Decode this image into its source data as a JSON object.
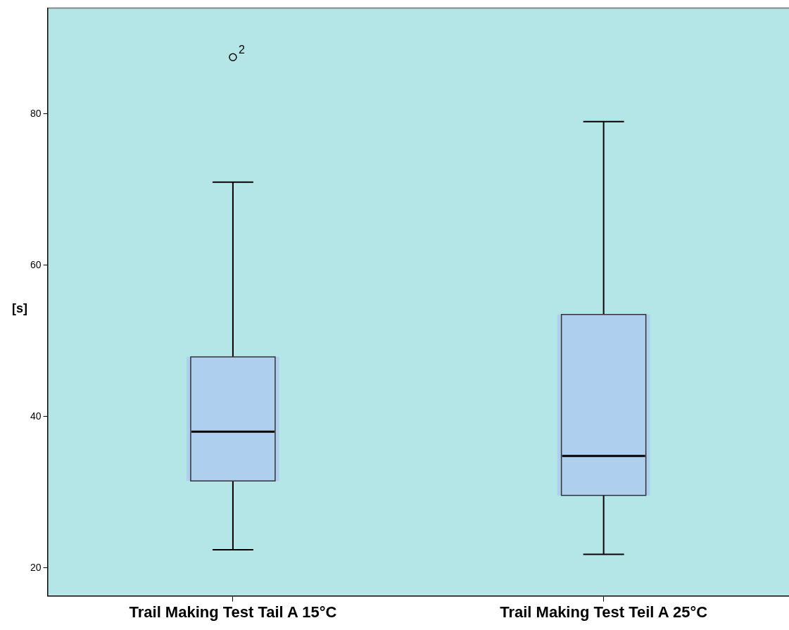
{
  "chart_data": {
    "type": "box",
    "ylabel": "[s]",
    "categories": [
      "Trail Making Test Tail A 15°C",
      "Trail Making Test Teil A 25°C"
    ],
    "boxes": [
      {
        "low": 22.4,
        "q1": 31.5,
        "median": 38,
        "q3": 47.9,
        "high": 71,
        "outliers": [
          87.5
        ]
      },
      {
        "low": 21.8,
        "q1": 29.6,
        "median": 34.8,
        "q3": 53.5,
        "high": 79
      }
    ],
    "color": "#aecfee",
    "ylim": [
      16.3,
      94
    ],
    "yticks": [
      20,
      40,
      60,
      80
    ],
    "grid": false,
    "legend": false,
    "annotations": [
      "2"
    ]
  }
}
